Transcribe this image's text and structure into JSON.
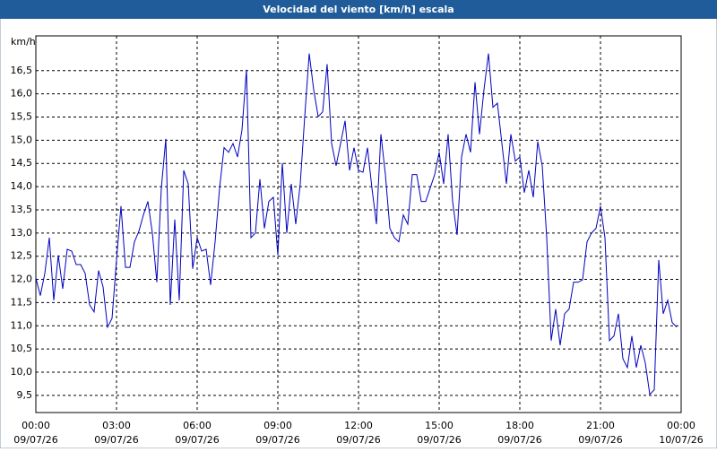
{
  "chart_data": {
    "type": "line",
    "title": "Velocidad del viento [km/h] escala",
    "y_label": "km/h",
    "grid": true,
    "xlim": [
      0,
      1440
    ],
    "xticks": [
      {
        "value": 0,
        "label": "00:00",
        "date": "09/07/26"
      },
      {
        "value": 180,
        "label": "03:00",
        "date": "09/07/26"
      },
      {
        "value": 360,
        "label": "06:00",
        "date": "09/07/26"
      },
      {
        "value": 540,
        "label": "09:00",
        "date": "09/07/26"
      },
      {
        "value": 720,
        "label": "12:00",
        "date": "09/07/26"
      },
      {
        "value": 900,
        "label": "15:00",
        "date": "09/07/26"
      },
      {
        "value": 1080,
        "label": "18:00",
        "date": "09/07/26"
      },
      {
        "value": 1260,
        "label": "21:00",
        "date": "09/07/26"
      },
      {
        "value": 1440,
        "label": "00:00",
        "date": "10/07/26"
      }
    ],
    "ylim": [
      9.13,
      17.25
    ],
    "yticks": [
      {
        "value": 9.5,
        "label": "9,5"
      },
      {
        "value": 10,
        "label": "10,0"
      },
      {
        "value": 10.5,
        "label": "10,5"
      },
      {
        "value": 11,
        "label": "11,0"
      },
      {
        "value": 11.5,
        "label": "11,5"
      },
      {
        "value": 12,
        "label": "12,0"
      },
      {
        "value": 12.5,
        "label": "12,5"
      },
      {
        "value": 13,
        "label": "13,0"
      },
      {
        "value": 13.5,
        "label": "13,5"
      },
      {
        "value": 14,
        "label": "14,0"
      },
      {
        "value": 14.5,
        "label": "14,5"
      },
      {
        "value": 15,
        "label": "15,0"
      },
      {
        "value": 15.5,
        "label": "15,5"
      },
      {
        "value": 16,
        "label": "16,0"
      },
      {
        "value": 16.5,
        "label": "16,5"
      }
    ],
    "x": [
      0,
      10,
      20,
      30,
      40,
      50,
      60,
      70,
      80,
      90,
      100,
      110,
      120,
      130,
      140,
      150,
      160,
      170,
      180,
      190,
      200,
      210,
      220,
      230,
      240,
      250,
      260,
      270,
      280,
      290,
      300,
      310,
      320,
      330,
      340,
      350,
      360,
      370,
      380,
      390,
      400,
      410,
      420,
      430,
      440,
      450,
      460,
      470,
      480,
      490,
      500,
      510,
      520,
      530,
      540,
      550,
      560,
      570,
      580,
      590,
      600,
      610,
      620,
      630,
      640,
      650,
      660,
      670,
      680,
      690,
      700,
      710,
      720,
      730,
      740,
      750,
      760,
      770,
      780,
      790,
      800,
      810,
      820,
      830,
      840,
      850,
      860,
      870,
      880,
      890,
      900,
      910,
      920,
      930,
      940,
      950,
      960,
      970,
      980,
      990,
      1000,
      1010,
      1020,
      1030,
      1040,
      1050,
      1060,
      1070,
      1080,
      1090,
      1100,
      1110,
      1120,
      1130,
      1140,
      1150,
      1160,
      1170,
      1180,
      1190,
      1200,
      1210,
      1220,
      1230,
      1240,
      1250,
      1260,
      1270,
      1280,
      1290,
      1300,
      1310,
      1320,
      1330,
      1340,
      1350,
      1360,
      1370,
      1380,
      1390,
      1400,
      1410,
      1420,
      1430
    ],
    "series": [
      {
        "color": "#0000c0",
        "values": [
          12.03,
          11.65,
          12.13,
          12.9,
          11.55,
          12.52,
          11.8,
          12.65,
          12.61,
          12.32,
          12.32,
          12.13,
          11.45,
          11.3,
          12.19,
          11.84,
          10.97,
          11.16,
          12.42,
          13.58,
          12.26,
          12.26,
          12.81,
          13.04,
          13.39,
          13.68,
          13.0,
          11.94,
          13.97,
          15.03,
          11.45,
          13.29,
          11.55,
          14.35,
          14.06,
          12.23,
          12.9,
          12.61,
          12.65,
          11.88,
          12.81,
          13.97,
          14.84,
          14.74,
          14.93,
          14.64,
          15.22,
          16.52,
          12.9,
          13.0,
          14.16,
          13.1,
          13.68,
          13.77,
          12.52,
          14.51,
          13.0,
          14.06,
          13.19,
          14.06,
          15.51,
          16.87,
          16.09,
          15.51,
          15.61,
          16.64,
          14.93,
          14.45,
          14.93,
          15.42,
          14.35,
          14.84,
          14.35,
          14.31,
          14.84,
          13.97,
          13.19,
          15.13,
          14.26,
          13.1,
          12.9,
          12.81,
          13.39,
          13.19,
          14.26,
          14.26,
          13.68,
          13.68,
          13.97,
          14.26,
          14.74,
          14.06,
          15.13,
          13.68,
          12.96,
          14.64,
          15.13,
          14.74,
          16.25,
          15.13,
          16.09,
          16.87,
          15.71,
          15.8,
          14.93,
          14.06,
          15.13,
          14.55,
          14.64,
          13.87,
          14.35,
          13.77,
          14.97,
          14.45,
          12.9,
          10.68,
          11.36,
          10.58,
          11.26,
          11.36,
          11.94,
          11.94,
          11.99,
          12.81,
          13.0,
          13.1,
          13.58,
          12.9,
          10.68,
          10.78,
          11.26,
          10.29,
          10.1,
          10.78,
          10.1,
          10.58,
          10.2,
          9.52,
          9.62,
          12.42,
          11.26,
          11.55,
          11.07,
          10.97
        ]
      }
    ]
  }
}
